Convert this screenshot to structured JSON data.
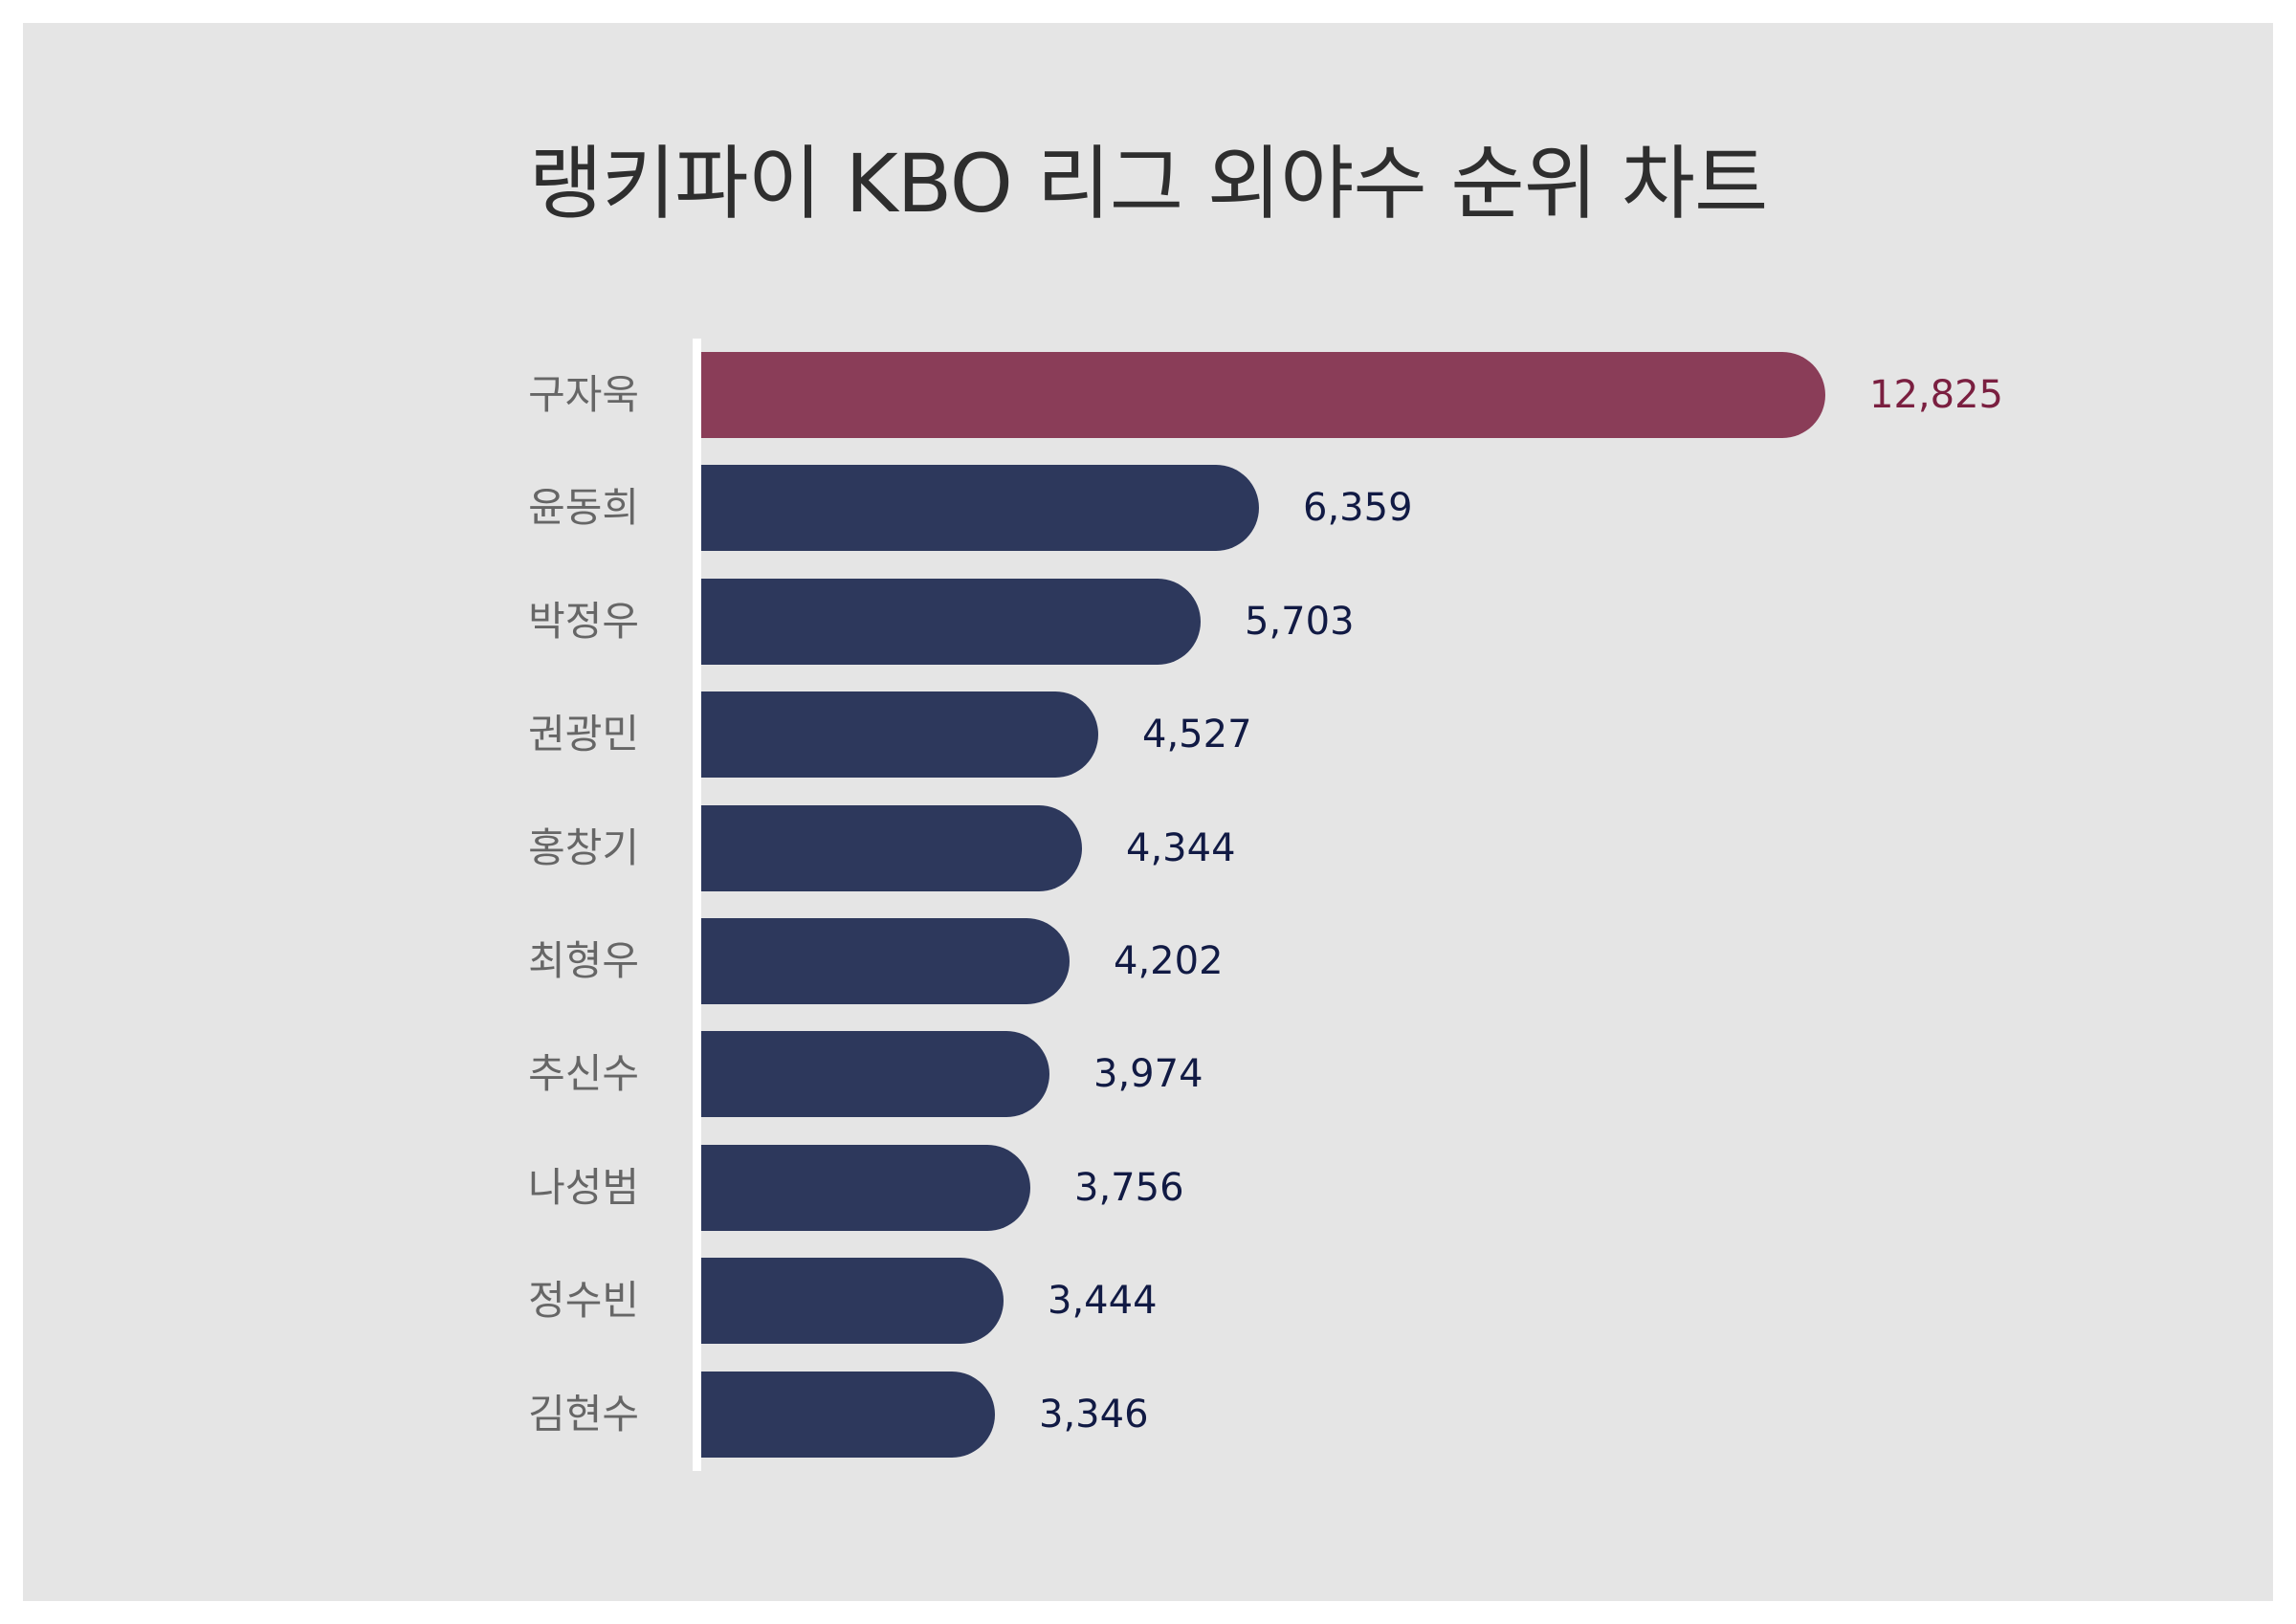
{
  "title": "랭키파이 KBO 리그 외야수 순위 차트",
  "colors": {
    "background": "#e5e5e5",
    "highlight_bar": "#8a3d58",
    "highlight_label": "#7a1f40",
    "bar": "#2d385c",
    "value_label": "#111a44",
    "category_label": "#666666",
    "axis": "#ffffff"
  },
  "chart_data": {
    "type": "bar",
    "orientation": "horizontal",
    "title": "랭키파이 KBO 리그 외야수 순위 차트",
    "xlabel": "",
    "ylabel": "",
    "categories": [
      "구자욱",
      "윤동희",
      "박정우",
      "권광민",
      "홍창기",
      "최형우",
      "추신수",
      "나성범",
      "정수빈",
      "김현수"
    ],
    "values": [
      12825,
      6359,
      5703,
      4527,
      4344,
      4202,
      3974,
      3756,
      3444,
      3346
    ],
    "value_labels": [
      "12,825",
      "6,359",
      "5,703",
      "4,527",
      "4,344",
      "4,202",
      "3,974",
      "3,756",
      "3,444",
      "3,346"
    ],
    "highlight_index": 0,
    "grid": false,
    "legend": "none",
    "xlim": [
      0,
      12825
    ]
  },
  "bars": [
    {
      "name": "구자욱",
      "value": 12825,
      "label": "12,825",
      "highlight": true
    },
    {
      "name": "윤동희",
      "value": 6359,
      "label": "6,359",
      "highlight": false
    },
    {
      "name": "박정우",
      "value": 5703,
      "label": "5,703",
      "highlight": false
    },
    {
      "name": "권광민",
      "value": 4527,
      "label": "4,527",
      "highlight": false
    },
    {
      "name": "홍창기",
      "value": 4344,
      "label": "4,344",
      "highlight": false
    },
    {
      "name": "최형우",
      "value": 4202,
      "label": "4,202",
      "highlight": false
    },
    {
      "name": "추신수",
      "value": 3974,
      "label": "3,974",
      "highlight": false
    },
    {
      "name": "나성범",
      "value": 3756,
      "label": "3,756",
      "highlight": false
    },
    {
      "name": "정수빈",
      "value": 3444,
      "label": "3,444",
      "highlight": false
    },
    {
      "name": "김현수",
      "value": 3346,
      "label": "3,346",
      "highlight": false
    }
  ]
}
